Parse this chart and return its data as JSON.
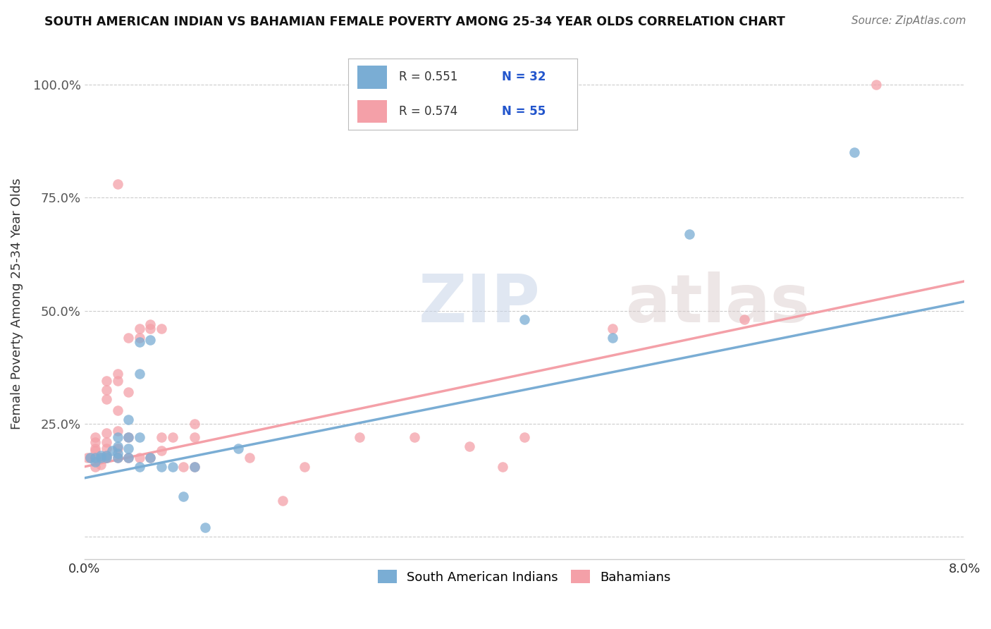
{
  "title": "SOUTH AMERICAN INDIAN VS BAHAMIAN FEMALE POVERTY AMONG 25-34 YEAR OLDS CORRELATION CHART",
  "source": "Source: ZipAtlas.com",
  "ylabel": "Female Poverty Among 25-34 Year Olds",
  "xlim": [
    0.0,
    0.08
  ],
  "ylim": [
    -0.05,
    1.08
  ],
  "color_blue": "#7aadd4",
  "color_pink": "#f4a0a8",
  "legend_box_color": "#dddddd",
  "blue_scatter": [
    [
      0.0005,
      0.175
    ],
    [
      0.001,
      0.165
    ],
    [
      0.001,
      0.175
    ],
    [
      0.0015,
      0.175
    ],
    [
      0.0015,
      0.18
    ],
    [
      0.002,
      0.175
    ],
    [
      0.002,
      0.18
    ],
    [
      0.0025,
      0.19
    ],
    [
      0.003,
      0.175
    ],
    [
      0.003,
      0.2
    ],
    [
      0.003,
      0.22
    ],
    [
      0.003,
      0.185
    ],
    [
      0.004,
      0.175
    ],
    [
      0.004,
      0.195
    ],
    [
      0.004,
      0.22
    ],
    [
      0.004,
      0.26
    ],
    [
      0.005,
      0.22
    ],
    [
      0.005,
      0.36
    ],
    [
      0.005,
      0.155
    ],
    [
      0.005,
      0.43
    ],
    [
      0.006,
      0.435
    ],
    [
      0.006,
      0.175
    ],
    [
      0.007,
      0.155
    ],
    [
      0.008,
      0.155
    ],
    [
      0.009,
      0.09
    ],
    [
      0.01,
      0.155
    ],
    [
      0.011,
      0.02
    ],
    [
      0.014,
      0.195
    ],
    [
      0.04,
      0.48
    ],
    [
      0.048,
      0.44
    ],
    [
      0.055,
      0.67
    ],
    [
      0.07,
      0.85
    ]
  ],
  "pink_scatter": [
    [
      0.0003,
      0.175
    ],
    [
      0.0005,
      0.175
    ],
    [
      0.001,
      0.155
    ],
    [
      0.001,
      0.175
    ],
    [
      0.001,
      0.19
    ],
    [
      0.001,
      0.195
    ],
    [
      0.001,
      0.21
    ],
    [
      0.001,
      0.22
    ],
    [
      0.0015,
      0.16
    ],
    [
      0.0015,
      0.175
    ],
    [
      0.002,
      0.175
    ],
    [
      0.002,
      0.18
    ],
    [
      0.002,
      0.195
    ],
    [
      0.002,
      0.21
    ],
    [
      0.002,
      0.23
    ],
    [
      0.002,
      0.305
    ],
    [
      0.002,
      0.325
    ],
    [
      0.002,
      0.345
    ],
    [
      0.003,
      0.175
    ],
    [
      0.003,
      0.195
    ],
    [
      0.003,
      0.235
    ],
    [
      0.003,
      0.28
    ],
    [
      0.003,
      0.345
    ],
    [
      0.003,
      0.36
    ],
    [
      0.003,
      0.78
    ],
    [
      0.004,
      0.175
    ],
    [
      0.004,
      0.22
    ],
    [
      0.004,
      0.32
    ],
    [
      0.004,
      0.44
    ],
    [
      0.005,
      0.175
    ],
    [
      0.005,
      0.44
    ],
    [
      0.005,
      0.46
    ],
    [
      0.006,
      0.175
    ],
    [
      0.006,
      0.46
    ],
    [
      0.006,
      0.47
    ],
    [
      0.007,
      0.19
    ],
    [
      0.007,
      0.22
    ],
    [
      0.007,
      0.46
    ],
    [
      0.008,
      0.22
    ],
    [
      0.009,
      0.155
    ],
    [
      0.01,
      0.155
    ],
    [
      0.01,
      0.22
    ],
    [
      0.01,
      0.25
    ],
    [
      0.015,
      0.175
    ],
    [
      0.018,
      0.08
    ],
    [
      0.02,
      0.155
    ],
    [
      0.025,
      0.22
    ],
    [
      0.03,
      0.22
    ],
    [
      0.035,
      0.2
    ],
    [
      0.038,
      0.155
    ],
    [
      0.04,
      0.22
    ],
    [
      0.048,
      0.46
    ],
    [
      0.06,
      0.48
    ],
    [
      0.072,
      1.0
    ]
  ],
  "blue_line_x": [
    0.0,
    0.08
  ],
  "blue_line_y": [
    0.13,
    0.52
  ],
  "pink_line_x": [
    0.0,
    0.08
  ],
  "pink_line_y": [
    0.155,
    0.565
  ]
}
